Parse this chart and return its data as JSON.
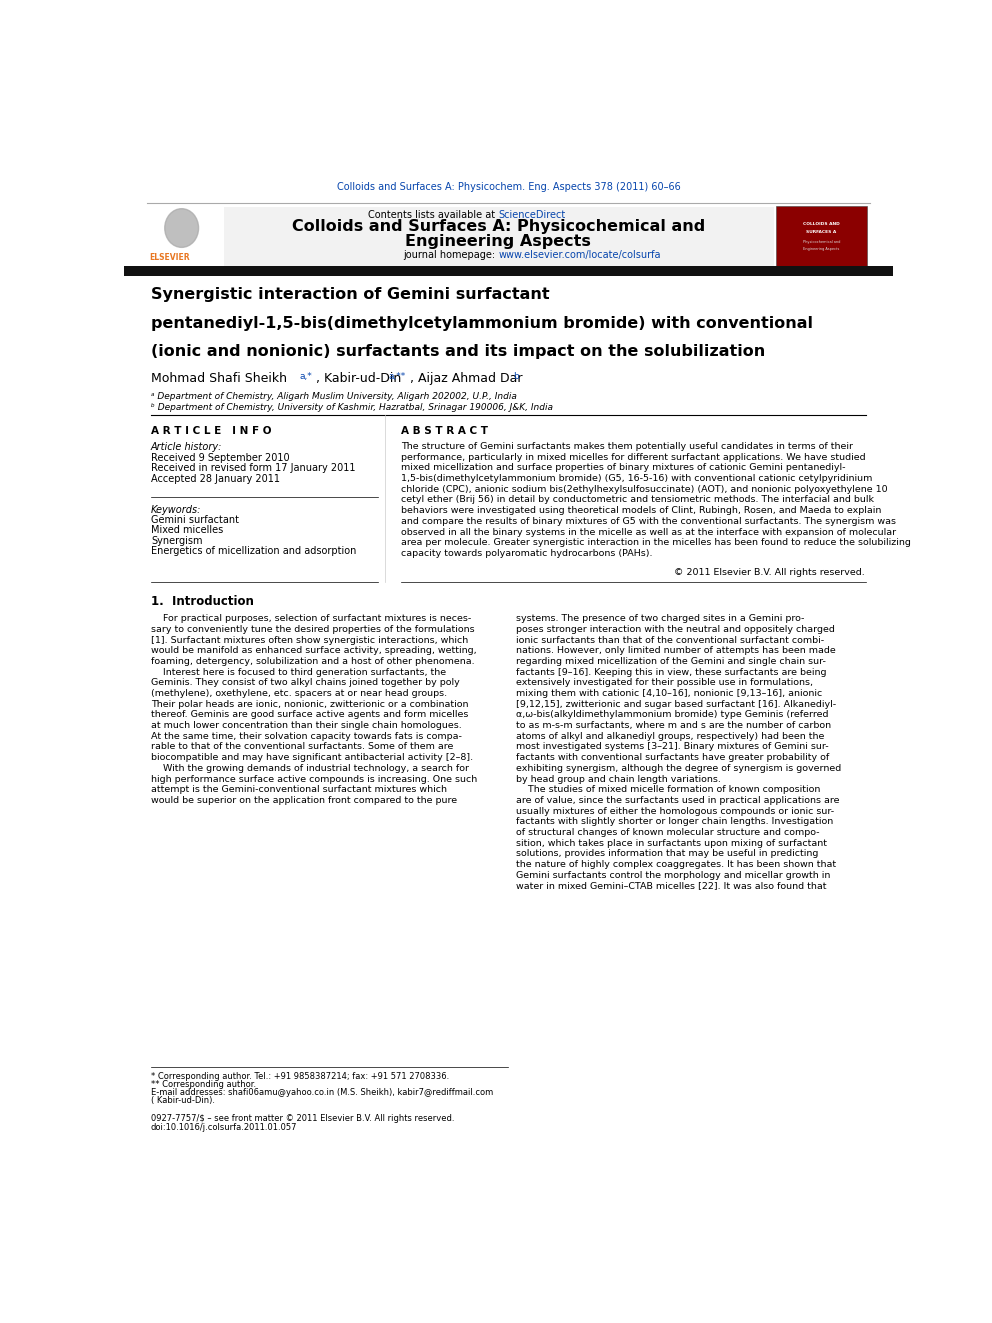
{
  "page_width": 9.92,
  "page_height": 13.23,
  "bg_color": "#ffffff",
  "header_citation": "Colloids and Surfaces A: Physicochem. Eng. Aspects 378 (2011) 60–66",
  "journal_title_line1": "Colloids and Surfaces A: Physicochemical and",
  "journal_title_line2": "Engineering Aspects",
  "homepage_url": "www.elsevier.com/locate/colsurfa",
  "article_title_lines": [
    "Synergistic interaction of Gemini surfactant",
    "pentanediyl-1,5-bis(dimethylcetylammonium bromide) with conventional",
    "(ionic and nonionic) surfactants and its impact on the solubilization"
  ],
  "affil_a": "ᵃ Department of Chemistry, Aligarh Muslim University, Aligarh 202002, U.P., India",
  "affil_b": "ᵇ Department of Chemistry, University of Kashmir, Hazratbal, Srinagar 190006, J&K, India",
  "article_info_label": "A R T I C L E   I N F O",
  "abstract_label": "A B S T R A C T",
  "received1": "Received 9 September 2010",
  "received2": "Received in revised form 17 January 2011",
  "accepted": "Accepted 28 January 2011",
  "keyword1": "Gemini surfactant",
  "keyword2": "Mixed micelles",
  "keyword3": "Synergism",
  "keyword4": "Energetics of micellization and adsorption",
  "abstract_lines": [
    "The structure of Gemini surfactants makes them potentially useful candidates in terms of their",
    "performance, particularly in mixed micelles for different surfactant applications. We have studied",
    "mixed micellization and surface properties of binary mixtures of cationic Gemini pentanediyl-",
    "1,5-bis(dimethylcetylammonium bromide) (G5, 16-5-16) with conventional cationic cetylpyridinium",
    "chloride (CPC), anionic sodium bis(2ethylhexylsulfosuccinate) (AOT), and nonionic polyoxyethylene 10",
    "cetyl ether (Brij 56) in detail by conductometric and tensiometric methods. The interfacial and bulk",
    "behaviors were investigated using theoretical models of Clint, Rubingh, Rosen, and Maeda to explain",
    "and compare the results of binary mixtures of G5 with the conventional surfactants. The synergism was",
    "observed in all the binary systems in the micelle as well as at the interface with expansion of molecular",
    "area per molecule. Greater synergistic interaction in the micelles has been found to reduce the solubilizing",
    "capacity towards polyaromatic hydrocarbons (PAHs)."
  ],
  "copyright": "© 2011 Elsevier B.V. All rights reserved.",
  "intro_heading": "1.  Introduction",
  "intro_col1_lines": [
    "    For practical purposes, selection of surfactant mixtures is neces-",
    "sary to conveniently tune the desired properties of the formulations",
    "[1]. Surfactant mixtures often show synergistic interactions, which",
    "would be manifold as enhanced surface activity, spreading, wetting,",
    "foaming, detergency, solubilization and a host of other phenomena.",
    "    Interest here is focused to third generation surfactants, the",
    "Geminis. They consist of two alkyl chains joined together by poly",
    "(methylene), oxethylene, etc. spacers at or near head groups.",
    "Their polar heads are ionic, nonionic, zwitterionic or a combination",
    "thereof. Geminis are good surface active agents and form micelles",
    "at much lower concentration than their single chain homologues.",
    "At the same time, their solvation capacity towards fats is compa-",
    "rable to that of the conventional surfactants. Some of them are",
    "biocompatible and may have significant antibacterial activity [2–8].",
    "    With the growing demands of industrial technology, a search for",
    "high performance surface active compounds is increasing. One such",
    "attempt is the Gemini-conventional surfactant mixtures which",
    "would be superior on the application front compared to the pure"
  ],
  "intro_col2_lines": [
    "systems. The presence of two charged sites in a Gemini pro-",
    "poses stronger interaction with the neutral and oppositely charged",
    "ionic surfactants than that of the conventional surfactant combi-",
    "nations. However, only limited number of attempts has been made",
    "regarding mixed micellization of the Gemini and single chain sur-",
    "factants [9–16]. Keeping this in view, these surfactants are being",
    "extensively investigated for their possible use in formulations,",
    "mixing them with cationic [4,10–16], nonionic [9,13–16], anionic",
    "[9,12,15], zwitterionic and sugar based surfactant [16]. Alkanediyl-",
    "α,ω-bis(alkyldimethylammonium bromide) type Geminis (referred",
    "to as m-s-m surfactants, where m and s are the number of carbon",
    "atoms of alkyl and alkanediyl groups, respectively) had been the",
    "most investigated systems [3–21]. Binary mixtures of Gemini sur-",
    "factants with conventional surfactants have greater probability of",
    "exhibiting synergism, although the degree of synergism is governed",
    "by head group and chain length variations.",
    "    The studies of mixed micelle formation of known composition",
    "are of value, since the surfactants used in practical applications are",
    "usually mixtures of either the homologous compounds or ionic sur-",
    "factants with slightly shorter or longer chain lengths. Investigation",
    "of structural changes of known molecular structure and compo-",
    "sition, which takes place in surfactants upon mixing of surfactant",
    "solutions, provides information that may be useful in predicting",
    "the nature of highly complex coaggregates. It has been shown that",
    "Gemini surfactants control the morphology and micellar growth in",
    "water in mixed Gemini–CTAB micelles [22]. It was also found that"
  ],
  "footnote1": "* Corresponding author. Tel.: +91 9858387214; fax: +91 571 2708336.",
  "footnote2": "** Corresponding author.",
  "footnote3": "E-mail addresses: shafi06amu@yahoo.co.in (M.S. Sheikh), kabir7@rediffmail.com",
  "footnote4": "( Kabir-ud-Din).",
  "issn_line": "0927-7757/$ – see front matter © 2011 Elsevier B.V. All rights reserved.",
  "doi_line": "doi:10.1016/j.colsurfa.2011.01.057",
  "link_color": "#0645ad",
  "elsevier_orange": "#e87722"
}
